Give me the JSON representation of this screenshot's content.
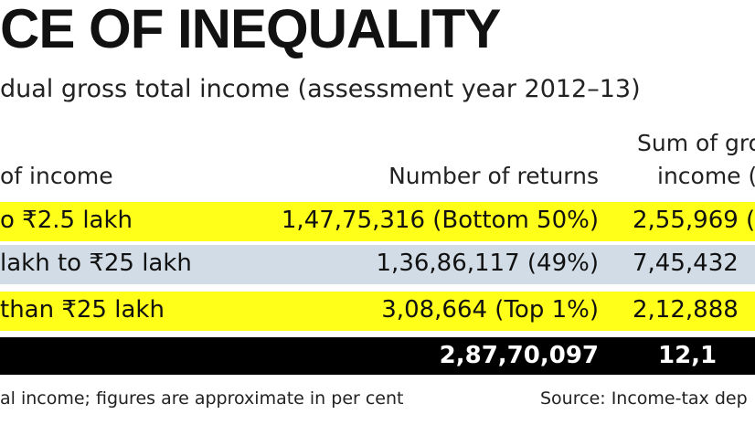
{
  "title": "CE OF INEQUALITY",
  "subtitle": "dual gross total income (assessment year 2012–13)",
  "table": {
    "headers": {
      "col1": "of income",
      "col2": "Number of returns",
      "col3_line1": "Sum of gros",
      "col3_line2": "income (i"
    },
    "rows": [
      {
        "range": "o ₹2.5 lakh",
        "returns": "1,47,75,316 (Bottom 50%)",
        "sum": "2,55,969 (2",
        "bg": "#ffff1a"
      },
      {
        "range": "lakh to ₹25 lakh",
        "returns": "1,36,86,117 (49%)",
        "sum": "7,45,432",
        "bg": "#d2dce6"
      },
      {
        "range": "than ₹25 lakh",
        "returns": "3,08,664 (Top 1%)",
        "sum": "2,12,888",
        "bg": "#ffff1a"
      }
    ],
    "total": {
      "range": "",
      "returns": "2,87,70,097",
      "sum": "12,1",
      "bg": "#000000"
    }
  },
  "footnote_left": "al income; figures are approximate in per cent",
  "footnote_right": "Source: Income-tax dep"
}
